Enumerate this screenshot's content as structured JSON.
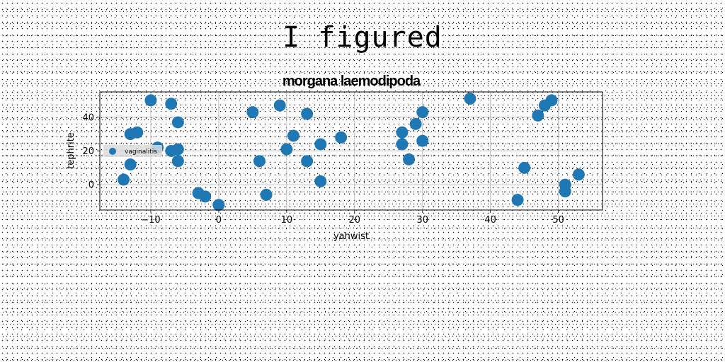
{
  "figure": {
    "suptitle": "I figured"
  },
  "chart_data": {
    "type": "scatter",
    "title": "morgana laemodipoda",
    "xlabel": "yahwist",
    "ylabel": "tephrite",
    "xlim": [
      -17.5,
      56.5
    ],
    "ylim": [
      -15,
      55
    ],
    "xticks": [
      -10,
      0,
      10,
      20,
      30,
      40,
      50
    ],
    "yticks": [
      0,
      20,
      40
    ],
    "grid": true,
    "legend_position": "center-left",
    "color": "#1f77b4",
    "series": [
      {
        "name": "vaginalitis",
        "points": [
          [
            -14,
            3
          ],
          [
            -13,
            12
          ],
          [
            -13,
            30
          ],
          [
            -12,
            31
          ],
          [
            -10,
            50
          ],
          [
            -9,
            22
          ],
          [
            -7,
            48
          ],
          [
            -7,
            20
          ],
          [
            -6,
            37
          ],
          [
            -6,
            21
          ],
          [
            -6,
            14
          ],
          [
            -3,
            -5
          ],
          [
            -2,
            -7
          ],
          [
            0,
            -12
          ],
          [
            5,
            43
          ],
          [
            6,
            14
          ],
          [
            7,
            -6
          ],
          [
            9,
            47
          ],
          [
            10,
            21
          ],
          [
            11,
            29
          ],
          [
            13,
            42
          ],
          [
            13,
            14
          ],
          [
            15,
            24
          ],
          [
            15,
            2
          ],
          [
            18,
            28
          ],
          [
            27,
            31
          ],
          [
            27,
            24
          ],
          [
            28,
            15
          ],
          [
            29,
            36
          ],
          [
            30,
            43
          ],
          [
            30,
            26
          ],
          [
            37,
            51
          ],
          [
            44,
            -9
          ],
          [
            45,
            10
          ],
          [
            47,
            41
          ],
          [
            48,
            47
          ],
          [
            49,
            50
          ],
          [
            51,
            0
          ],
          [
            51,
            -4
          ],
          [
            53,
            6
          ]
        ]
      }
    ]
  }
}
